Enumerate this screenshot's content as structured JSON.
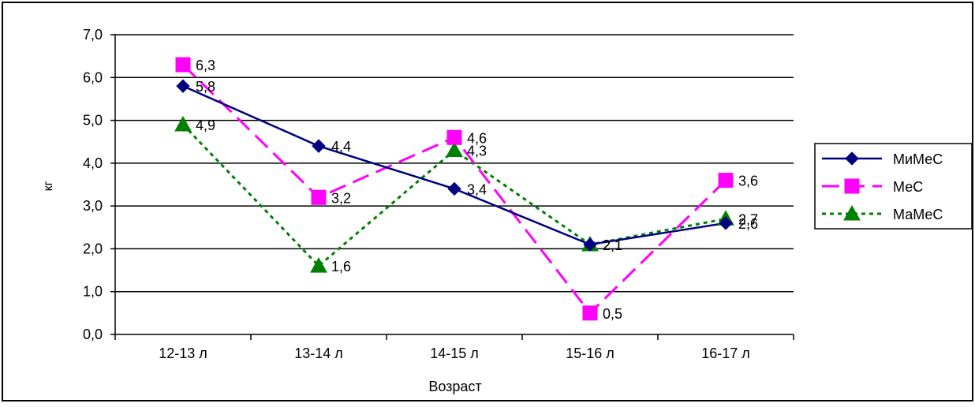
{
  "chart_data": {
    "type": "line",
    "title": "",
    "xlabel": "Возраст",
    "ylabel": "кг",
    "ylim": [
      0,
      7
    ],
    "y_ticks": [
      "0,0",
      "1,0",
      "2,0",
      "3,0",
      "4,0",
      "5,0",
      "6,0",
      "7,0"
    ],
    "categories": [
      "12-13 л",
      "13-14 л",
      "14-15 л",
      "15-16 л",
      "16-17 л"
    ],
    "grid": true,
    "legend_position": "right",
    "series": [
      {
        "name": "МиМеС",
        "values": [
          5.8,
          4.4,
          3.4,
          2.1,
          2.6
        ],
        "labels": [
          "5,8",
          "4,4",
          "3,4",
          "2,1",
          "2,6"
        ],
        "color": "#000080",
        "marker": "diamond",
        "line_style": "solid"
      },
      {
        "name": "МеС",
        "values": [
          6.3,
          3.2,
          4.6,
          0.5,
          3.6
        ],
        "labels": [
          "6,3",
          "3,2",
          "4,6",
          "0,5",
          "3,6"
        ],
        "color": "#ff00ff",
        "marker": "square",
        "line_style": "dashed"
      },
      {
        "name": "МаМеС",
        "values": [
          4.9,
          1.6,
          4.3,
          2.1,
          2.7
        ],
        "labels": [
          "4,9",
          "1,6",
          "4,3",
          "2,1",
          "2,7"
        ],
        "color": "#008000",
        "marker": "triangle",
        "line_style": "dotted"
      }
    ]
  }
}
